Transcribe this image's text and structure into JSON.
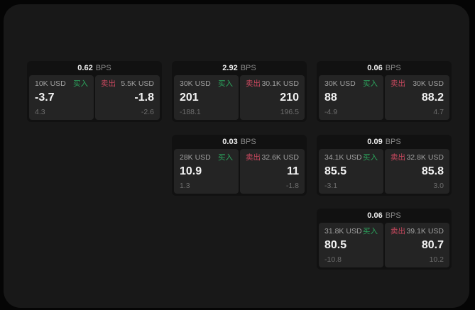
{
  "labels": {
    "bps_unit": "BPS",
    "buy": "买入",
    "sell": "卖出"
  },
  "colors": {
    "buy_green": "#2ca45d",
    "sell_red": "#c8485e"
  },
  "cards": [
    {
      "bps": "0.62",
      "row": 1,
      "col": 1,
      "buy": {
        "amount": "10K USD",
        "value": "-3.7",
        "delta": "4.3"
      },
      "sell": {
        "amount": "5.5K USD",
        "value": "-1.8",
        "delta": "-2.6"
      }
    },
    {
      "bps": "2.92",
      "row": 1,
      "col": 2,
      "buy": {
        "amount": "30K USD",
        "value": "201",
        "delta": "-188.1"
      },
      "sell": {
        "amount": "30.1K USD",
        "value": "210",
        "delta": "196.5"
      }
    },
    {
      "bps": "0.06",
      "row": 1,
      "col": 3,
      "buy": {
        "amount": "30K USD",
        "value": "88",
        "delta": "-4.9"
      },
      "sell": {
        "amount": "30K USD",
        "value": "88.2",
        "delta": "4.7"
      }
    },
    {
      "bps": "0.03",
      "row": 2,
      "col": 2,
      "buy": {
        "amount": "28K USD",
        "value": "10.9",
        "delta": "1.3"
      },
      "sell": {
        "amount": "32.6K USD",
        "value": "11",
        "delta": "-1.8"
      }
    },
    {
      "bps": "0.09",
      "row": 2,
      "col": 3,
      "buy": {
        "amount": "34.1K USD",
        "value": "85.5",
        "delta": "-3.1"
      },
      "sell": {
        "amount": "32.8K USD",
        "value": "85.8",
        "delta": "3.0"
      }
    },
    {
      "bps": "0.06",
      "row": 3,
      "col": 3,
      "buy": {
        "amount": "31.8K USD",
        "value": "80.5",
        "delta": "-10.8"
      },
      "sell": {
        "amount": "39.1K USD",
        "value": "80.7",
        "delta": "10.2"
      }
    }
  ]
}
